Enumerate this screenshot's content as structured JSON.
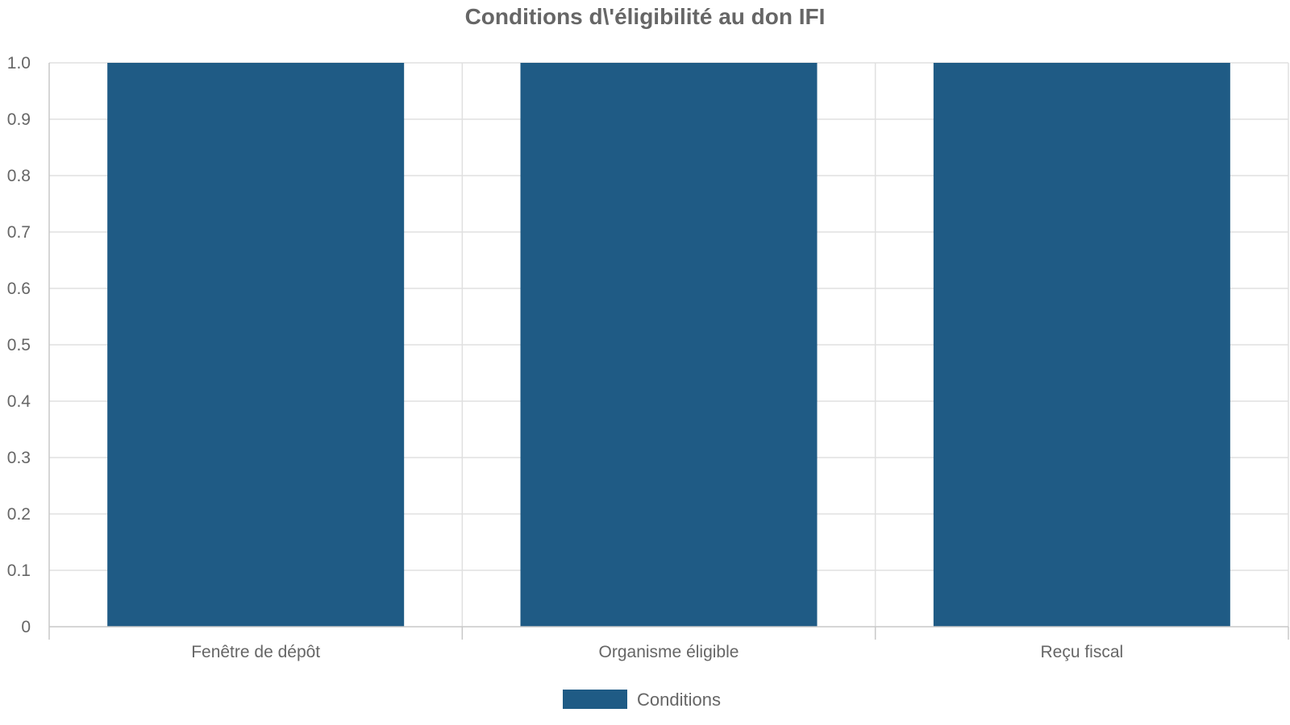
{
  "chart_data": {
    "type": "bar",
    "title": "Conditions d\\'éligibilité au don IFI",
    "xlabel": "",
    "ylabel": "",
    "categories": [
      "Fenêtre de dépôt",
      "Organisme éligible",
      "Reçu fiscal"
    ],
    "series": [
      {
        "name": "Conditions",
        "values": [
          1,
          1,
          1
        ],
        "color": "#1f5b85"
      }
    ],
    "ylim": [
      0,
      1
    ],
    "y_ticks": [
      "0",
      "0.1",
      "0.2",
      "0.3",
      "0.4",
      "0.5",
      "0.6",
      "0.7",
      "0.8",
      "0.9",
      "1.0"
    ],
    "grid": true,
    "legend_position": "bottom-center",
    "colors": {
      "grid": "#e0e0e0",
      "axis": "#c8c8c8",
      "text": "#666666"
    }
  }
}
